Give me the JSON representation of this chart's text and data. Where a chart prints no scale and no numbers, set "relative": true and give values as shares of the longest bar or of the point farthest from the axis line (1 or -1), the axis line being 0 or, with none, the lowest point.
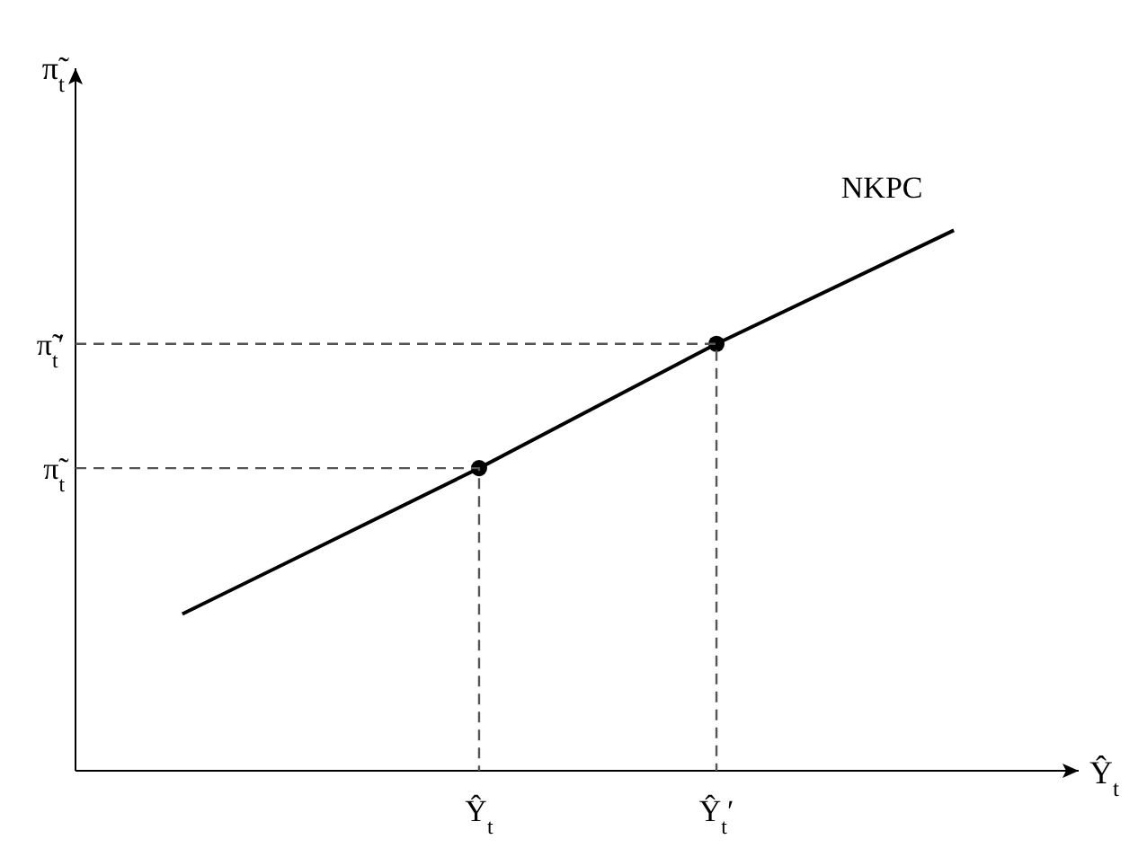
{
  "chart_data": {
    "type": "line",
    "relative": true,
    "xlabel": "Ŷ$_{t}$",
    "ylabel": "π̃$_{t}$",
    "categories": [
      null,
      null,
      null,
      null,
      null,
      "Ŷ$_{t}$",
      null,
      null,
      null,
      "Ŷ$_{t}$′",
      null,
      null,
      null,
      null
    ],
    "annotations": [
      "π̃$_{t}$",
      "π̃$_{t}$′"
    ],
    "series": [
      {
        "name": "NKPC",
        "color": "#000000",
        "values": [
          0.29,
          null,
          null,
          null,
          null,
          0.56,
          null,
          null,
          null,
          0.79,
          null,
          null,
          null,
          1
        ],
        "marker": "none",
        "line_style": "solid"
      },
      {
        "type": "scatter",
        "color": "#000000",
        "values": [
          null,
          null,
          null,
          null,
          null,
          0.56,
          null,
          null,
          null,
          0.79,
          null,
          null,
          null,
          null
        ],
        "marker": "circle"
      }
    ]
  }
}
